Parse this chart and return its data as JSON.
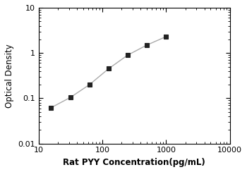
{
  "x": [
    15.6,
    31.2,
    62.5,
    125,
    250,
    500,
    1000
  ],
  "y": [
    0.062,
    0.104,
    0.2,
    0.45,
    0.9,
    1.5,
    2.3
  ],
  "xlim": [
    10,
    10000
  ],
  "ylim": [
    0.01,
    10
  ],
  "xlabel": "Rat PYY Concentration(pg/mL)",
  "ylabel": "Optical Density",
  "line_color": "#aaaaaa",
  "marker_color": "#222222",
  "marker": "s",
  "marker_size": 4.5,
  "line_width": 1.0,
  "background_color": "#ffffff",
  "xticks": [
    10,
    100,
    1000,
    10000
  ],
  "yticks": [
    0.01,
    0.1,
    1,
    10
  ],
  "ytick_labels": [
    "0.01",
    "0.1",
    "1",
    "10"
  ],
  "xtick_labels": [
    "10",
    "100",
    "1000",
    "10000"
  ],
  "xlabel_fontsize": 8.5,
  "ylabel_fontsize": 8.5,
  "tick_fontsize": 8,
  "xlabel_bold": true
}
